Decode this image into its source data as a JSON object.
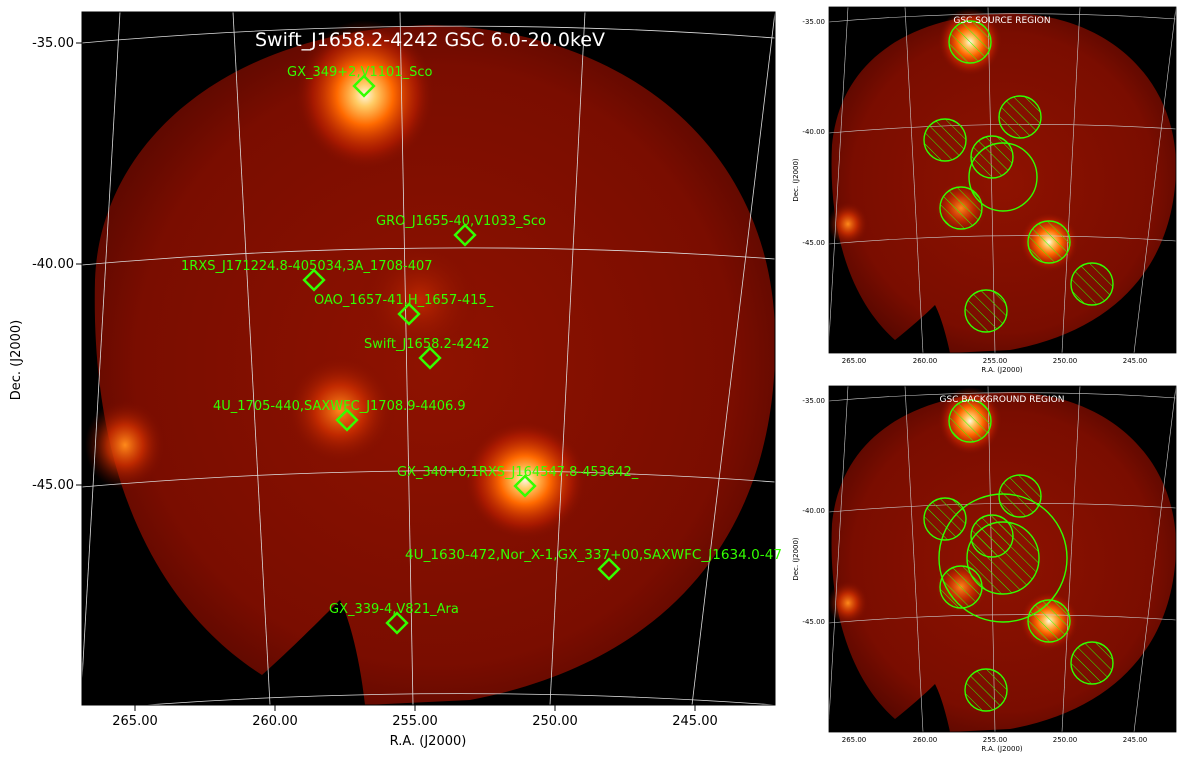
{
  "main": {
    "title": "Swift_J1658.2-4242 GSC 6.0-20.0keV",
    "xlabel": "R.A. (J2000)",
    "ylabel": "Dec. (J2000)",
    "xticks": [
      "265.00",
      "260.00",
      "255.00",
      "250.00",
      "245.00"
    ],
    "yticks": [
      "-35.00",
      "-40.00",
      "-45.00"
    ],
    "sources": [
      {
        "label": "GX_349+2,V1101_Sco"
      },
      {
        "label": "GRO_J1655-40,V1033_Sco"
      },
      {
        "label": "1RXS_J171224.8-405034,3A_1708-407"
      },
      {
        "label": "OAO_1657-41,H_1657-415_"
      },
      {
        "label": "Swift_J1658.2-4242"
      },
      {
        "label": "4U_1705-440,SAXWFC_J1708.9-4406.9"
      },
      {
        "label": "GX_340+0,1RXS_J164547.8-453642_"
      },
      {
        "label": "4U_1630-472,Nor_X-1,GX_337+00,SAXWFC_J1634.0-47"
      },
      {
        "label": "GX_339-4,V821_Ara"
      }
    ]
  },
  "panels": [
    {
      "title": "GSC SOURCE REGION",
      "xlabel": "R.A. (J2000)",
      "ylabel": "Dec. (J2000)",
      "xticks": [
        "265.00",
        "260.00",
        "255.00",
        "250.00",
        "245.00"
      ],
      "yticks": [
        "-35.00",
        "-40.00",
        "-45.00"
      ]
    },
    {
      "title": "GSC BACKGROUND REGION",
      "xlabel": "R.A. (J2000)",
      "ylabel": "Dec. (J2000)",
      "xticks": [
        "265.00",
        "260.00",
        "255.00",
        "250.00",
        "245.00"
      ],
      "yticks": [
        "-35.00",
        "-40.00",
        "-45.00"
      ]
    }
  ],
  "colors": {
    "marker": "#33ff00",
    "background": "#000000",
    "glow": "#ff6a00",
    "hot": "#fff4d0",
    "map_base": "#7a0d00"
  }
}
